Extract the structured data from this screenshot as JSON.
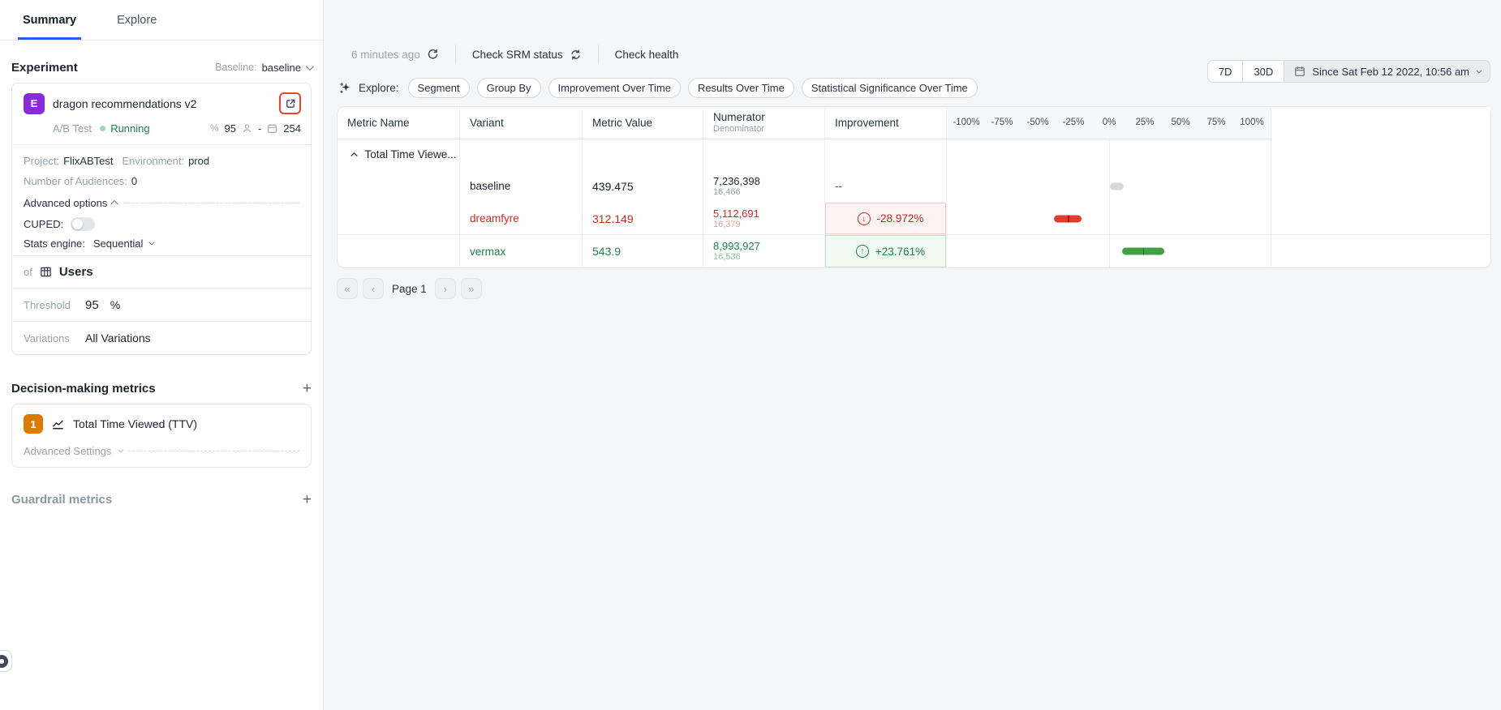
{
  "tabs": {
    "summary": "Summary",
    "explore": "Explore"
  },
  "sidebar": {
    "section_title": "Experiment",
    "baseline_label": "Baseline:",
    "baseline_value": "baseline",
    "experiment": {
      "avatar_letter": "E",
      "name": "dragon recommendations v2",
      "type": "A/B Test",
      "status": "Running",
      "confidence_stat": "95",
      "users_stat": "-",
      "days_stat": "254",
      "project_label": "Project:",
      "project": "FlixABTest",
      "environment_label": "Environment:",
      "environment": "prod",
      "audiences_label": "Number of Audiences:",
      "audiences": "0",
      "advanced_options_label": "Advanced options",
      "cuped_label": "CUPED:",
      "stats_engine_label": "Stats engine:",
      "stats_engine_value": "Sequential",
      "of_label": "of",
      "unit_type": "Users",
      "threshold_label": "Threshold",
      "threshold_value": "95",
      "threshold_unit": "%",
      "variations_label": "Variations",
      "variations_value": "All Variations"
    },
    "decision_metrics_title": "Decision-making metrics",
    "metric_rank": "1",
    "metric_name": "Total Time Viewed (TTV)",
    "advanced_settings_label": "Advanced Settings",
    "guardrail_title": "Guardrail metrics"
  },
  "toolbar": {
    "last_updated": "6 minutes ago",
    "check_srm_label": "Check SRM status",
    "check_health_label": "Check health",
    "explore_label": "Explore:",
    "pills": [
      "Segment",
      "Group By",
      "Improvement Over Time",
      "Results Over Time",
      "Statistical Significance Over Time"
    ],
    "range_7d": "7D",
    "range_30d": "30D",
    "date_range": "Since Sat Feb 12 2022, 10:56 am"
  },
  "results_table": {
    "columns": {
      "metric_name": "Metric Name",
      "variant": "Variant",
      "metric_value": "Metric Value",
      "numerator": "Numerator",
      "denominator": "Denominator",
      "improvement": "Improvement"
    },
    "group_label": "Total Time Viewe...",
    "axis_ticks": [
      "-100%",
      "-75%",
      "-50%",
      "-25%",
      "0%",
      "25%",
      "50%",
      "75%",
      "100%"
    ],
    "axis_range": [
      -100,
      100
    ],
    "rows": [
      {
        "variant": "baseline",
        "value": "439.475",
        "numerator": "7,236,398",
        "denominator": "16,466",
        "improvement": "--",
        "sentiment": "neutral",
        "bar": {
          "from": 0.5,
          "to": 10.5,
          "marker": null,
          "color": "#d7d9dc",
          "marker_color": null
        }
      },
      {
        "variant": "dreamfyre",
        "value": "312.149",
        "numerator": "5,112,691",
        "denominator": "16,379",
        "improvement": "-28.972%",
        "sentiment": "negative",
        "bar": {
          "from": -38.5,
          "to": -19.5,
          "marker": -28.972,
          "color": "#e23b31",
          "marker_color": "#9e1f17"
        }
      },
      {
        "variant": "vermax",
        "value": "543.9",
        "numerator": "8,993,927",
        "denominator": "16,536",
        "improvement": "+23.761%",
        "sentiment": "positive",
        "bar": {
          "from": 9,
          "to": 38.5,
          "marker": 23.761,
          "color": "#43a047",
          "marker_color": "#1d6f2f"
        }
      }
    ]
  },
  "pagination": {
    "label": "Page 1"
  },
  "icons": {
    "arrow_down": "↓",
    "arrow_up": "↑",
    "percent": "%",
    "first_page": "«",
    "prev_page": "‹",
    "next_page": "›",
    "last_page": "»"
  },
  "colors": {
    "accent_blue": "#2b5ce6",
    "experiment_purple": "#8a2bd9",
    "metric_orange": "#dd7b00",
    "negative_red": "#cf2a20",
    "positive_green": "#1d8545",
    "highlight_outline_red": "#e8432e",
    "page_background": "#f5f6f8"
  }
}
